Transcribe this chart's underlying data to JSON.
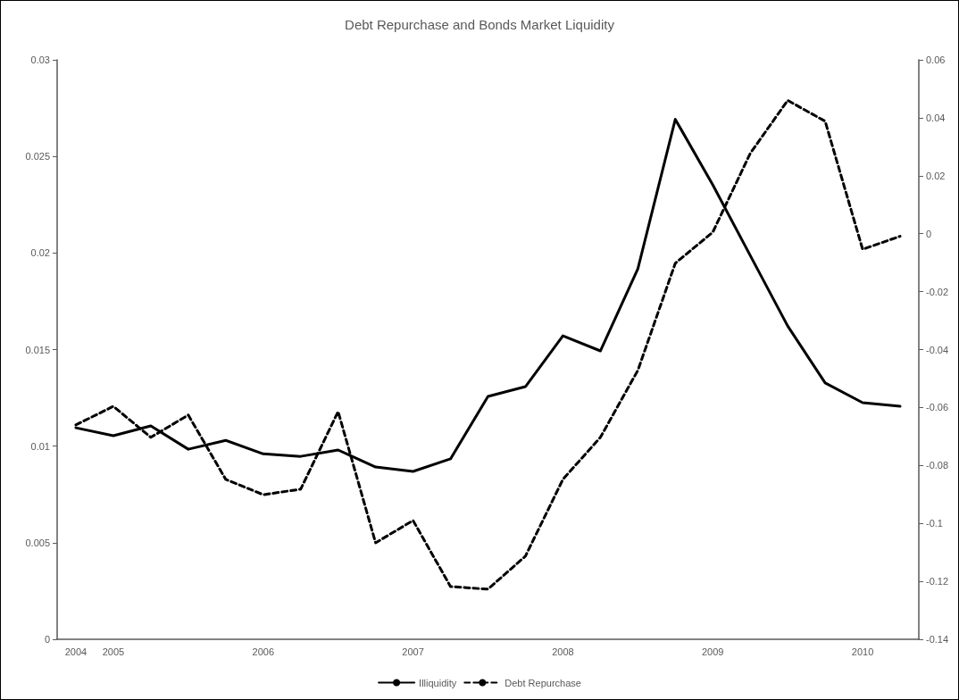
{
  "chart_data": {
    "type": "line",
    "title": "Debt Repurchase and Bonds Market Liquidity",
    "categories": [
      "2004",
      "2005",
      null,
      null,
      null,
      "2006",
      null,
      null,
      null,
      "2007",
      null,
      null,
      null,
      "2008",
      null,
      null,
      null,
      "2009",
      null,
      null,
      null,
      "2010",
      null
    ],
    "series": [
      {
        "name": "Illiquidity",
        "color": "#000000",
        "line_style": "solid",
        "values": [
          0.01095,
          0.01054,
          0.01105,
          0.00984,
          0.0103,
          0.0096,
          0.00947,
          0.0098,
          0.00892,
          0.00869,
          0.00934,
          0.01257,
          0.01308,
          0.01571,
          0.01493,
          0.01918,
          0.02692,
          0.02353,
          0.01987,
          0.01622,
          0.01327,
          0.01225,
          0.01206
        ]
      },
      {
        "name": "Debt Repurchase",
        "color": "#000000",
        "line_style": "dashed",
        "axis": "y2",
        "values": [
          -0.066,
          -0.0596,
          -0.0703,
          -0.0626,
          -0.0848,
          -0.0901,
          -0.0882,
          -0.0614,
          -0.1067,
          -0.099,
          -0.1218,
          -0.1227,
          -0.1113,
          -0.0848,
          -0.0703,
          -0.0472,
          -0.0102,
          0.0005,
          0.0277,
          0.046,
          0.0388,
          -0.0054,
          -0.0009
        ]
      }
    ],
    "ylim": [
      0,
      0.03
    ],
    "yticks": [
      0,
      0.005,
      0.01,
      0.015,
      0.02,
      0.025,
      0.03
    ],
    "y2lim": [
      -0.14,
      0.06
    ],
    "y2ticks": [
      -0.14,
      -0.12,
      -0.1,
      -0.08,
      -0.06,
      -0.04,
      -0.02,
      0,
      0.02,
      0.04,
      0.06
    ],
    "grid": false,
    "legend": "bottom",
    "marker": "none"
  }
}
